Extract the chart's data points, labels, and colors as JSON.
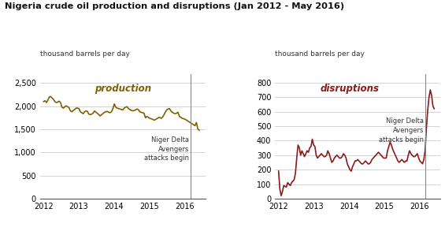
{
  "title": "Nigeria crude oil production and disruptions (Jan 2012 - May 2016)",
  "ylabel_left": "thousand barrels per day",
  "ylabel_right": "thousand barrels per day",
  "prod_label": "production",
  "disr_label": "disruptions",
  "prod_color": "#806000",
  "disr_color": "#8B1A1A",
  "annot_color": "#333333",
  "vline_color": "#888888",
  "grid_color": "#cccccc",
  "bg_color": "#ffffff",
  "attack_date": 2016.17,
  "prod_ylim": [
    0,
    2700
  ],
  "disr_ylim": [
    0,
    860
  ],
  "prod_yticks": [
    0,
    500,
    1000,
    1500,
    2000,
    2500
  ],
  "disr_yticks": [
    0,
    100,
    200,
    300,
    400,
    500,
    600,
    700,
    800
  ],
  "xticks": [
    2012,
    2013,
    2014,
    2015,
    2016
  ],
  "xlim": [
    2011.9,
    2016.6
  ],
  "production": [
    2100,
    2120,
    2080,
    2130,
    2200,
    2210,
    2180,
    2150,
    2100,
    2080,
    2090,
    2110,
    2080,
    1980,
    1960,
    1990,
    2010,
    1990,
    1970,
    1900,
    1880,
    1910,
    1930,
    1960,
    1960,
    1950,
    1880,
    1860,
    1840,
    1880,
    1900,
    1890,
    1830,
    1820,
    1830,
    1850,
    1900,
    1870,
    1850,
    1820,
    1790,
    1820,
    1840,
    1870,
    1880,
    1890,
    1870,
    1860,
    1880,
    1950,
    2050,
    1980,
    1960,
    1950,
    1940,
    1930,
    1920,
    1960,
    1980,
    1990,
    1950,
    1930,
    1910,
    1900,
    1910,
    1920,
    1940,
    1930,
    1880,
    1870,
    1860,
    1850,
    1750,
    1780,
    1760,
    1740,
    1730,
    1720,
    1700,
    1710,
    1730,
    1750,
    1760,
    1740,
    1760,
    1810,
    1870,
    1920,
    1940,
    1950,
    1900,
    1870,
    1850,
    1840,
    1850,
    1870,
    1780,
    1760,
    1740,
    1730,
    1720,
    1700,
    1680,
    1660,
    1640,
    1620,
    1600,
    1580,
    1650,
    1510,
    1480
  ],
  "disruptions": [
    190,
    65,
    20,
    50,
    90,
    85,
    80,
    110,
    100,
    90,
    110,
    120,
    130,
    175,
    280,
    370,
    350,
    300,
    330,
    310,
    290,
    310,
    330,
    320,
    350,
    360,
    410,
    370,
    360,
    300,
    280,
    290,
    300,
    310,
    300,
    290,
    290,
    300,
    330,
    310,
    280,
    250,
    260,
    280,
    290,
    300,
    290,
    280,
    280,
    290,
    310,
    300,
    280,
    240,
    220,
    200,
    190,
    220,
    240,
    260,
    260,
    270,
    260,
    250,
    240,
    240,
    250,
    260,
    250,
    240,
    240,
    250,
    270,
    280,
    290,
    300,
    310,
    320,
    310,
    300,
    290,
    280,
    280,
    280,
    330,
    360,
    390,
    370,
    340,
    320,
    300,
    280,
    260,
    250,
    260,
    270,
    260,
    250,
    260,
    260,
    300,
    330,
    310,
    300,
    290,
    290,
    300,
    310,
    280,
    260,
    250,
    240,
    270,
    330,
    490,
    610,
    700,
    750,
    710,
    640,
    620
  ]
}
